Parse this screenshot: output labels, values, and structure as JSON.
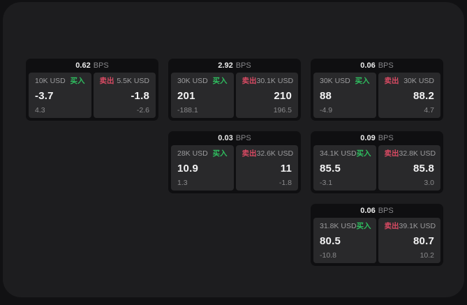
{
  "labels": {
    "bps_unit": "BPS",
    "buy": "买入",
    "sell": "卖出"
  },
  "colors": {
    "buy": "#2fbd5f",
    "sell": "#d84a63",
    "window_background": "#1d1d1f",
    "desktop_background": "#111113",
    "card_background": "#0f0f11",
    "panel_background": "#29292b"
  },
  "cards": [
    {
      "bps": "0.62",
      "grid": {
        "col": 1,
        "row": 1
      },
      "buy": {
        "notional": "10K USD",
        "value": "-3.7",
        "delta": "4.3"
      },
      "sell": {
        "notional": "5.5K USD",
        "value": "-1.8",
        "delta": "-2.6"
      }
    },
    {
      "bps": "2.92",
      "grid": {
        "col": 2,
        "row": 1
      },
      "buy": {
        "notional": "30K USD",
        "value": "201",
        "delta": "-188.1"
      },
      "sell": {
        "notional": "30.1K USD",
        "value": "210",
        "delta": "196.5"
      }
    },
    {
      "bps": "0.06",
      "grid": {
        "col": 3,
        "row": 1
      },
      "buy": {
        "notional": "30K USD",
        "value": "88",
        "delta": "-4.9"
      },
      "sell": {
        "notional": "30K USD",
        "value": "88.2",
        "delta": "4.7"
      }
    },
    {
      "bps": "0.03",
      "grid": {
        "col": 2,
        "row": 2
      },
      "buy": {
        "notional": "28K USD",
        "value": "10.9",
        "delta": "1.3"
      },
      "sell": {
        "notional": "32.6K USD",
        "value": "11",
        "delta": "-1.8"
      }
    },
    {
      "bps": "0.09",
      "grid": {
        "col": 3,
        "row": 2
      },
      "buy": {
        "notional": "34.1K USD",
        "value": "85.5",
        "delta": "-3.1"
      },
      "sell": {
        "notional": "32.8K USD",
        "value": "85.8",
        "delta": "3.0"
      }
    },
    {
      "bps": "0.06",
      "grid": {
        "col": 3,
        "row": 3
      },
      "buy": {
        "notional": "31.8K USD",
        "value": "80.5",
        "delta": "-10.8"
      },
      "sell": {
        "notional": "39.1K USD",
        "value": "80.7",
        "delta": "10.2"
      }
    }
  ]
}
